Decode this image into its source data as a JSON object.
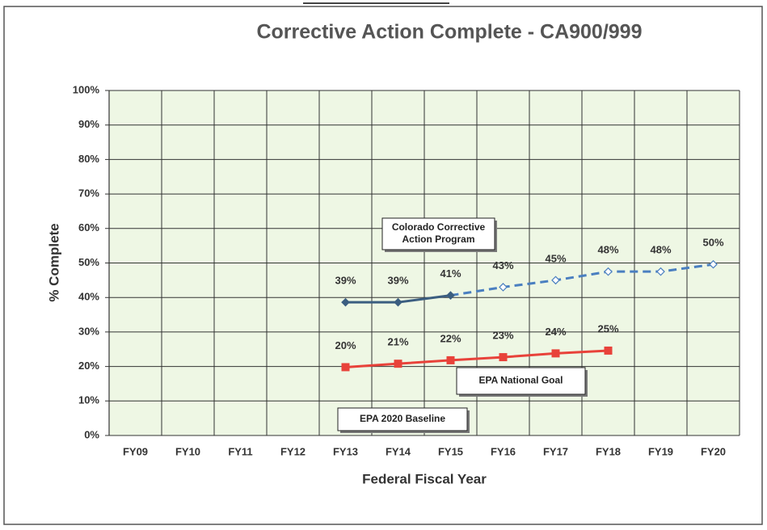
{
  "chart_data": {
    "type": "line",
    "title": "Corrective Action Complete - CA900/999",
    "x_label": "Federal Fiscal Year",
    "y_label": "% Complete",
    "categories": [
      "FY09",
      "FY10",
      "FY11",
      "FY12",
      "FY13",
      "FY14",
      "FY15",
      "FY16",
      "FY17",
      "FY18",
      "FY19",
      "FY20"
    ],
    "ylim": [
      0,
      100
    ],
    "yticks": [
      {
        "value": 0,
        "label": "0%"
      },
      {
        "value": 10,
        "label": "10%"
      },
      {
        "value": 20,
        "label": "20%"
      },
      {
        "value": 30,
        "label": "30%"
      },
      {
        "value": 40,
        "label": "40%"
      },
      {
        "value": 50,
        "label": "50%"
      },
      {
        "value": 60,
        "label": "60%"
      },
      {
        "value": 70,
        "label": "70%"
      },
      {
        "value": 80,
        "label": "80%"
      },
      {
        "value": 90,
        "label": "90%"
      },
      {
        "value": 100,
        "label": "100%"
      }
    ],
    "grid": true,
    "series": [
      {
        "color": "#3b5e80",
        "dash_color": "#4a7fc0",
        "dash_from": 6,
        "marker": "diamond",
        "values": [
          null,
          null,
          null,
          null,
          38.6,
          38.6,
          40.6,
          43,
          45,
          47.5,
          47.5,
          49.6
        ],
        "value_labels": [
          null,
          null,
          null,
          null,
          "39%",
          "39%",
          "41%",
          "43%",
          "45%",
          "48%",
          "48%",
          "50%"
        ]
      },
      {
        "color": "#e8423a",
        "marker": "square",
        "values": [
          null,
          null,
          null,
          null,
          19.8,
          20.8,
          21.8,
          22.7,
          23.8,
          24.6,
          null,
          null
        ],
        "value_labels": [
          null,
          null,
          null,
          null,
          "20%",
          "21%",
          "22%",
          "23%",
          "24%",
          "25%",
          null,
          null
        ]
      }
    ],
    "annotations": [
      {
        "lines": [
          "Colorado Corrective",
          "Action Program"
        ]
      },
      {
        "lines": [
          "EPA National Goal"
        ]
      },
      {
        "lines": [
          "EPA 2020 Baseline"
        ]
      }
    ]
  }
}
